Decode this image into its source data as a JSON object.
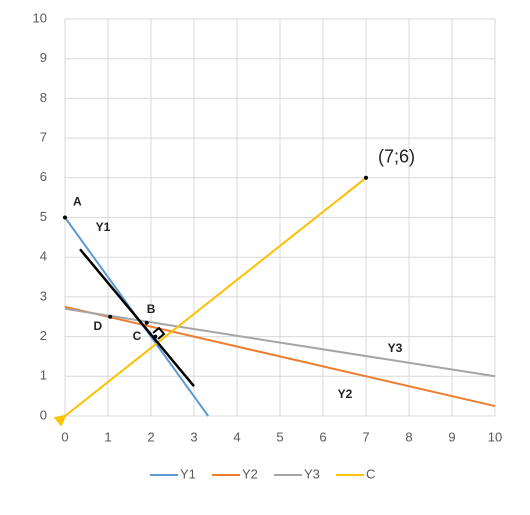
{
  "chart_data": {
    "type": "line",
    "series": [
      {
        "name": "Y1",
        "color": "#5b9bd5",
        "x": [
          0,
          3.33
        ],
        "values": [
          5,
          0
        ]
      },
      {
        "name": "Y2",
        "color": "#ed7d31",
        "x": [
          0,
          10
        ],
        "values": [
          2.75,
          0.25
        ]
      },
      {
        "name": "Y3",
        "color": "#a5a5a5",
        "x": [
          0,
          10
        ],
        "values": [
          2.7,
          1.0
        ]
      },
      {
        "name": "C",
        "color": "#ffc000",
        "x": [
          0,
          7
        ],
        "values": [
          0,
          6
        ]
      },
      {
        "color": "#000000",
        "x": [
          0.35,
          3.0
        ],
        "values": [
          4.2,
          0.75
        ]
      }
    ],
    "points": [
      {
        "label": "A",
        "x": 0,
        "y": 5
      },
      {
        "label": "B",
        "x": 1.9,
        "y": 2.35
      },
      {
        "label": "D",
        "x": 1.05,
        "y": 2.5
      },
      {
        "label": "C",
        "x": 2.1,
        "y": 2.0
      },
      {
        "label": "(7;6)",
        "x": 7,
        "y": 6
      }
    ],
    "xlim": [
      0,
      10
    ],
    "ylim": [
      0,
      10
    ],
    "xticks": [
      0,
      1,
      2,
      3,
      4,
      5,
      6,
      7,
      8,
      9,
      10
    ],
    "yticks": [
      0,
      1,
      2,
      3,
      4,
      5,
      6,
      7,
      8,
      9,
      10
    ],
    "grid": true,
    "legend": "bottom"
  }
}
